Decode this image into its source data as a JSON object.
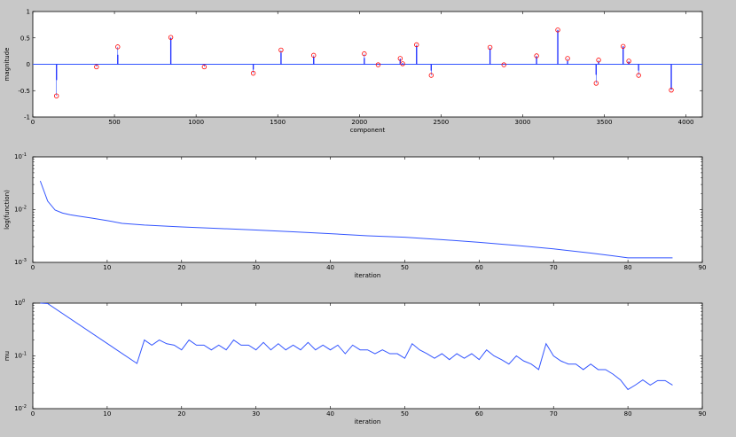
{
  "chart_data": [
    {
      "type": "stem",
      "title": "",
      "xlabel": "component",
      "ylabel": "magnitude",
      "xlim": [
        0,
        4100
      ],
      "ylim": [
        -1,
        1
      ],
      "xticks": [
        0,
        500,
        1000,
        1500,
        2000,
        2500,
        3000,
        3500,
        4000
      ],
      "xtick_labels": [
        "0",
        "500",
        "1000",
        "1500",
        "2000",
        "2500",
        "3000",
        "3500",
        "4000"
      ],
      "yticks": [
        -1,
        -0.5,
        0,
        0.5,
        1
      ],
      "ytick_labels": [
        "-1",
        "-0.5",
        "0",
        "0.5",
        "1"
      ],
      "grid": false,
      "series": [
        {
          "role": "estimate",
          "color": "#0000ff",
          "x": [
            145,
            390,
            520,
            845,
            1050,
            1350,
            1520,
            1720,
            2030,
            2115,
            2250,
            2265,
            2350,
            2440,
            2800,
            2885,
            3085,
            3215,
            3275,
            3450,
            3465,
            3615,
            3650,
            3710,
            3910
          ],
          "y": [
            -0.3,
            -0.02,
            0.18,
            0.5,
            -0.02,
            -0.1,
            0.22,
            0.14,
            0.12,
            -0.01,
            0.1,
            0.02,
            0.35,
            -0.12,
            0.3,
            -0.01,
            0.15,
            0.65,
            0.06,
            -0.2,
            0.05,
            0.34,
            0.05,
            -0.12,
            -0.48
          ]
        },
        {
          "role": "original",
          "color": "#ff0000",
          "marker": "circle",
          "x": [
            145,
            390,
            520,
            845,
            1050,
            1350,
            1520,
            1720,
            2030,
            2115,
            2250,
            2265,
            2350,
            2440,
            2800,
            2885,
            3085,
            3215,
            3275,
            3450,
            3465,
            3615,
            3650,
            3710,
            3910
          ],
          "y": [
            -0.6,
            -0.05,
            0.33,
            0.51,
            -0.05,
            -0.17,
            0.27,
            0.17,
            0.2,
            -0.01,
            0.11,
            0.01,
            0.37,
            -0.21,
            0.32,
            -0.01,
            0.16,
            0.65,
            0.11,
            -0.36,
            0.08,
            0.34,
            0.06,
            -0.21,
            -0.49
          ]
        }
      ]
    },
    {
      "type": "line",
      "title": "",
      "xlabel": "iteration",
      "ylabel": "log(function)",
      "yscale": "log",
      "xlim": [
        0,
        90
      ],
      "ylim": [
        0.001,
        0.1
      ],
      "xticks": [
        0,
        10,
        20,
        30,
        40,
        50,
        60,
        70,
        80,
        90
      ],
      "xtick_labels": [
        "0",
        "10",
        "20",
        "30",
        "40",
        "50",
        "60",
        "70",
        "80",
        "90"
      ],
      "yticks": [
        0.001,
        0.01,
        0.1
      ],
      "ytick_labels": [
        "10",
        "10",
        "10"
      ],
      "ytick_exponents": [
        "-3",
        "-2",
        "-1"
      ],
      "grid": false,
      "series": [
        {
          "color": "#3355ff",
          "x": [
            1,
            2,
            3,
            4,
            5,
            6,
            8,
            10,
            12,
            15,
            20,
            25,
            30,
            35,
            40,
            45,
            50,
            55,
            60,
            65,
            70,
            75,
            78,
            80,
            82,
            86
          ],
          "y": [
            0.035,
            0.0145,
            0.0098,
            0.0086,
            0.008,
            0.0076,
            0.0069,
            0.0062,
            0.0055,
            0.0051,
            0.0047,
            0.0044,
            0.0041,
            0.0038,
            0.0035,
            0.0032,
            0.003,
            0.0027,
            0.0024,
            0.0021,
            0.0018,
            0.0015,
            0.00133,
            0.00122,
            0.00122,
            0.00122
          ]
        }
      ]
    },
    {
      "type": "line",
      "title": "",
      "xlabel": "iteration",
      "ylabel": "mu",
      "yscale": "log",
      "xlim": [
        0,
        90
      ],
      "ylim": [
        0.01,
        1
      ],
      "xticks": [
        0,
        10,
        20,
        30,
        40,
        50,
        60,
        70,
        80,
        90
      ],
      "xtick_labels": [
        "0",
        "10",
        "20",
        "30",
        "40",
        "50",
        "60",
        "70",
        "80",
        "90"
      ],
      "yticks": [
        0.01,
        0.1,
        1
      ],
      "ytick_labels": [
        "10",
        "10",
        "10"
      ],
      "ytick_exponents": [
        "-2",
        "-1",
        "0"
      ],
      "grid": false,
      "series": [
        {
          "color": "#3355ff",
          "x": [
            1,
            2,
            14,
            15,
            16,
            17,
            18,
            19,
            20,
            21,
            22,
            23,
            24,
            25,
            26,
            27,
            28,
            29,
            30,
            31,
            32,
            33,
            34,
            35,
            36,
            37,
            38,
            39,
            40,
            41,
            42,
            43,
            44,
            45,
            46,
            47,
            48,
            49,
            50,
            51,
            52,
            53,
            54,
            55,
            56,
            57,
            58,
            59,
            60,
            61,
            62,
            63,
            64,
            65,
            66,
            67,
            68,
            69,
            70,
            71,
            72,
            73,
            74,
            75,
            76,
            77,
            78,
            79,
            80,
            81,
            82,
            83,
            84,
            85,
            86
          ],
          "y": [
            1.0,
            0.98,
            0.072,
            0.2,
            0.16,
            0.2,
            0.17,
            0.16,
            0.13,
            0.2,
            0.16,
            0.16,
            0.13,
            0.16,
            0.13,
            0.2,
            0.16,
            0.16,
            0.13,
            0.18,
            0.13,
            0.17,
            0.13,
            0.16,
            0.13,
            0.18,
            0.13,
            0.16,
            0.13,
            0.16,
            0.11,
            0.16,
            0.13,
            0.13,
            0.11,
            0.13,
            0.11,
            0.11,
            0.09,
            0.17,
            0.13,
            0.11,
            0.09,
            0.11,
            0.085,
            0.11,
            0.09,
            0.11,
            0.085,
            0.13,
            0.1,
            0.085,
            0.07,
            0.1,
            0.08,
            0.07,
            0.055,
            0.17,
            0.1,
            0.08,
            0.07,
            0.07,
            0.055,
            0.07,
            0.055,
            0.055,
            0.045,
            0.035,
            0.023,
            0.028,
            0.035,
            0.028,
            0.034,
            0.034,
            0.028
          ]
        }
      ]
    }
  ]
}
